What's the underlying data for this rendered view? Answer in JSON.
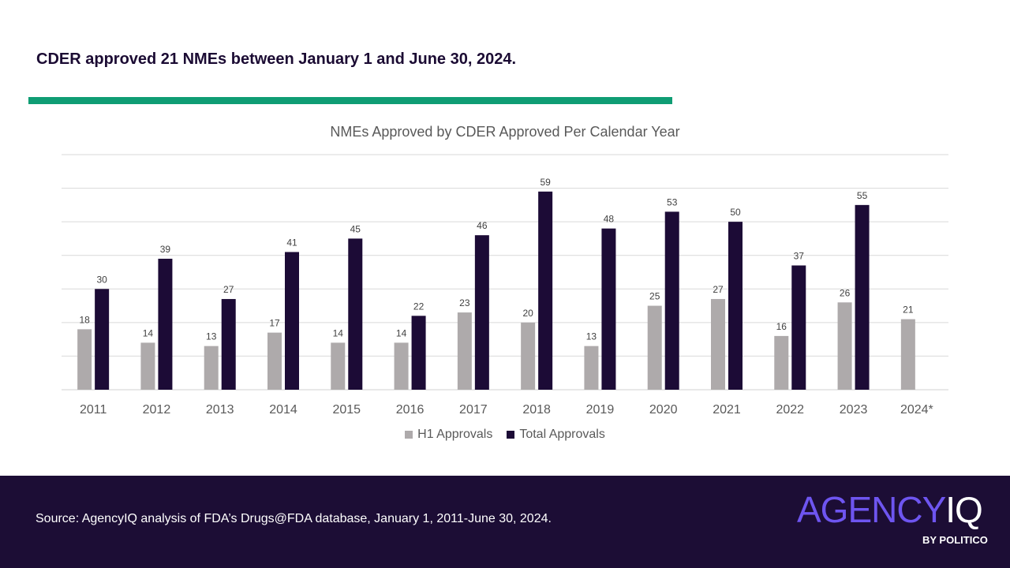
{
  "headline": "CDER approved 21 NMEs between January 1 and June 30, 2024.",
  "colors": {
    "accent": "#0f9d74",
    "h1": "#aeaaab",
    "total": "#1c0b36",
    "footer_bg": "#1c0d35",
    "logo_purple": "#6e55f0"
  },
  "chart_data": {
    "type": "bar",
    "title": "NMEs Approved by CDER Approved Per Calendar Year",
    "categories": [
      "2011",
      "2012",
      "2013",
      "2014",
      "2015",
      "2016",
      "2017",
      "2018",
      "2019",
      "2020",
      "2021",
      "2022",
      "2023",
      "2024*"
    ],
    "series": [
      {
        "name": "H1 Approvals",
        "values": [
          18,
          14,
          13,
          17,
          14,
          14,
          23,
          20,
          13,
          25,
          27,
          16,
          26,
          21
        ]
      },
      {
        "name": "Total Approvals",
        "values": [
          30,
          39,
          27,
          41,
          45,
          22,
          46,
          59,
          48,
          53,
          50,
          37,
          55,
          null
        ]
      }
    ],
    "ylim": [
      0,
      70
    ],
    "gridline_step": 10,
    "xlabel": "",
    "ylabel": "",
    "legend": "bottom"
  },
  "footer": {
    "source": "Source: AgencyIQ analysis of FDA’s Drugs@FDA database, January 1, 2011-June 30, 2024.",
    "logo_main": "AGENCY",
    "logo_iq": "IQ",
    "byline": "BY POLITICO"
  }
}
